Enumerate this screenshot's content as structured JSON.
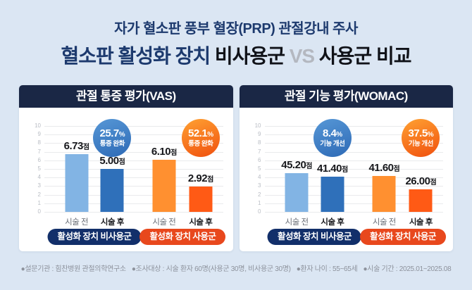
{
  "colors": {
    "page_background": "#dbe6f3",
    "title_navy": "#1d3a6e",
    "title_dark": "#101218",
    "vs_gray": "#b4b8c0",
    "card_header_navy": "#1a2745",
    "bar_light_blue": "#82b4e4",
    "bar_dark_blue": "#2f70ba",
    "bar_light_orange": "#ff9030",
    "bar_dark_orange": "#ff5a15",
    "pill_navy": "#122f6a",
    "pill_red": "#e8481d"
  },
  "title": {
    "line1": "자가 혈소판 풍부 혈장(PRP) 관절강내 주사",
    "line2_parts": [
      {
        "text": "혈소판 활성화 장치 ",
        "color": "#1d3a6e"
      },
      {
        "text": "비사용군",
        "color": "#101218"
      },
      {
        "text": " VS ",
        "color": "#b4b8c0"
      },
      {
        "text": "사용군 비교",
        "color": "#101218"
      }
    ]
  },
  "chart_data": [
    {
      "type": "bar",
      "title": "관절 통증 평가(VAS)",
      "xlabel": "",
      "ylabel": "",
      "ylim": [
        0,
        10
      ],
      "yticks": [
        0,
        1,
        2,
        3,
        4,
        5,
        6,
        7,
        8,
        9,
        10
      ],
      "grid": true,
      "categories": [
        "시술 전",
        "시술 후",
        "시술 전",
        "시술 후"
      ],
      "values": [
        6.73,
        5.0,
        6.1,
        2.92
      ],
      "value_labels": [
        "6.73",
        "5.00",
        "6.10",
        "2.92"
      ],
      "value_suffix": "점",
      "plotted_heights": [
        6.73,
        5.0,
        6.1,
        2.92
      ],
      "bar_colors": [
        "#82b4e4",
        "#2f70ba",
        "#ff9030",
        "#ff5a15"
      ],
      "badges": [
        {
          "percent_text": "25.7%",
          "caption": "통증 완화",
          "over_bar": 1,
          "gradient": [
            "#5697d6",
            "#2e6ab6"
          ]
        },
        {
          "percent_text": "52.1%",
          "caption": "통증 완화",
          "over_bar": 3,
          "gradient": [
            "#ffa132",
            "#f0500e"
          ]
        }
      ],
      "legend": [
        {
          "label": "활성화 장치 비사용군",
          "color": "#122f6a"
        },
        {
          "label": "활성화 장치 사용군",
          "color": "#e8481d"
        }
      ],
      "legend_position": "bottom"
    },
    {
      "type": "bar",
      "title": "관절 기능 평가(WOMAC)",
      "xlabel": "",
      "ylabel": "",
      "ylim": [
        0,
        10
      ],
      "yticks": [
        0,
        1,
        2,
        3,
        4,
        5,
        6,
        7,
        8,
        9,
        10
      ],
      "grid": true,
      "categories": [
        "시술 전",
        "시술 후",
        "시술 전",
        "시술 후"
      ],
      "values": [
        45.2,
        41.4,
        41.6,
        26.0
      ],
      "value_labels": [
        "45.20",
        "41.40",
        "41.60",
        "26.00"
      ],
      "value_suffix": "점",
      "plotted_heights": [
        4.52,
        4.14,
        4.16,
        2.6
      ],
      "bar_colors": [
        "#82b4e4",
        "#2f70ba",
        "#ff9030",
        "#ff5a15"
      ],
      "badges": [
        {
          "percent_text": "8.4%",
          "caption": "기능 개선",
          "over_bar": 1,
          "gradient": [
            "#5697d6",
            "#2e6ab6"
          ]
        },
        {
          "percent_text": "37.5%",
          "caption": "기능 개선",
          "over_bar": 3,
          "gradient": [
            "#ffa132",
            "#f0500e"
          ]
        }
      ],
      "legend": [
        {
          "label": "활성화 장치 비사용군",
          "color": "#122f6a"
        },
        {
          "label": "활성화 장치 사용군",
          "color": "#e8481d"
        }
      ],
      "legend_position": "bottom"
    }
  ],
  "footer": {
    "segments": [
      "●설문기관 : 힘찬병원 관절의학연구소",
      "●조사대상 : 시술 환자 60명(사용군 30명, 비사용군 30명)",
      "●환자 나이 : 55~65세",
      "●시술 기간 : 2025.01~2025.08"
    ]
  }
}
